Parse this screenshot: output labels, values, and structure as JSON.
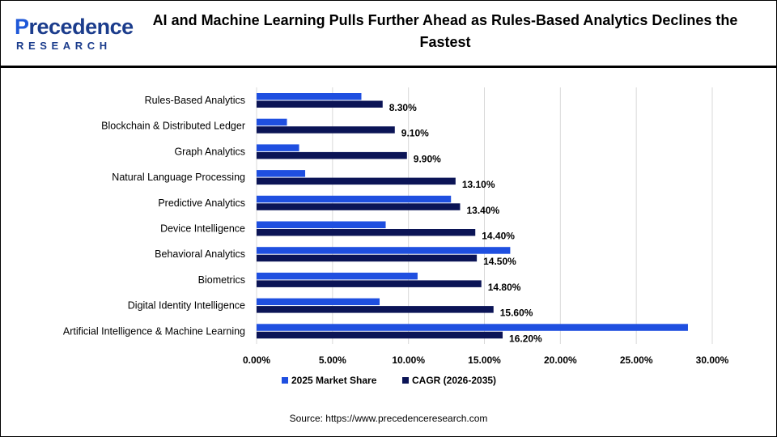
{
  "header": {
    "logo_top": "recedence",
    "logo_first": "P",
    "logo_bottom": "RESEARCH",
    "title": "AI and Machine Learning Pulls Further Ahead as Rules-Based Analytics Declines the Fastest"
  },
  "source": "Source: https://www.precedenceresearch.com",
  "colors": {
    "share": "#1f4fe0",
    "cagr": "#0b1456",
    "grid": "#d9d9d9"
  },
  "chart_data": {
    "type": "bar",
    "orientation": "horizontal",
    "categories": [
      "Rules-Based Analytics",
      "Blockchain & Distributed Ledger",
      "Graph Analytics",
      "Natural Language Processing",
      "Predictive Analytics",
      "Device Intelligence",
      "Behavioral Analytics",
      "Biometrics",
      "Digital Identity Intelligence",
      "Artificial Intelligence & Machine Learning"
    ],
    "series": [
      {
        "name": "2025 Market Share",
        "values": [
          6.9,
          2.0,
          2.8,
          3.2,
          12.8,
          8.5,
          16.7,
          10.6,
          8.1,
          28.4
        ]
      },
      {
        "name": "CAGR (2026-2035)",
        "values": [
          8.3,
          9.1,
          9.9,
          13.1,
          13.4,
          14.4,
          14.5,
          14.8,
          15.6,
          16.2
        ],
        "labels": [
          "8.30%",
          "9.10%",
          "9.90%",
          "13.10%",
          "13.40%",
          "14.40%",
          "14.50%",
          "14.80%",
          "15.60%",
          "16.20%"
        ]
      }
    ],
    "xlim": [
      0,
      30
    ],
    "xticks": [
      0,
      5,
      10,
      15,
      20,
      25,
      30
    ],
    "xtick_labels": [
      "0.00%",
      "5.00%",
      "10.00%",
      "15.00%",
      "20.00%",
      "25.00%",
      "30.00%"
    ],
    "grid": true,
    "legend": "bottom"
  }
}
